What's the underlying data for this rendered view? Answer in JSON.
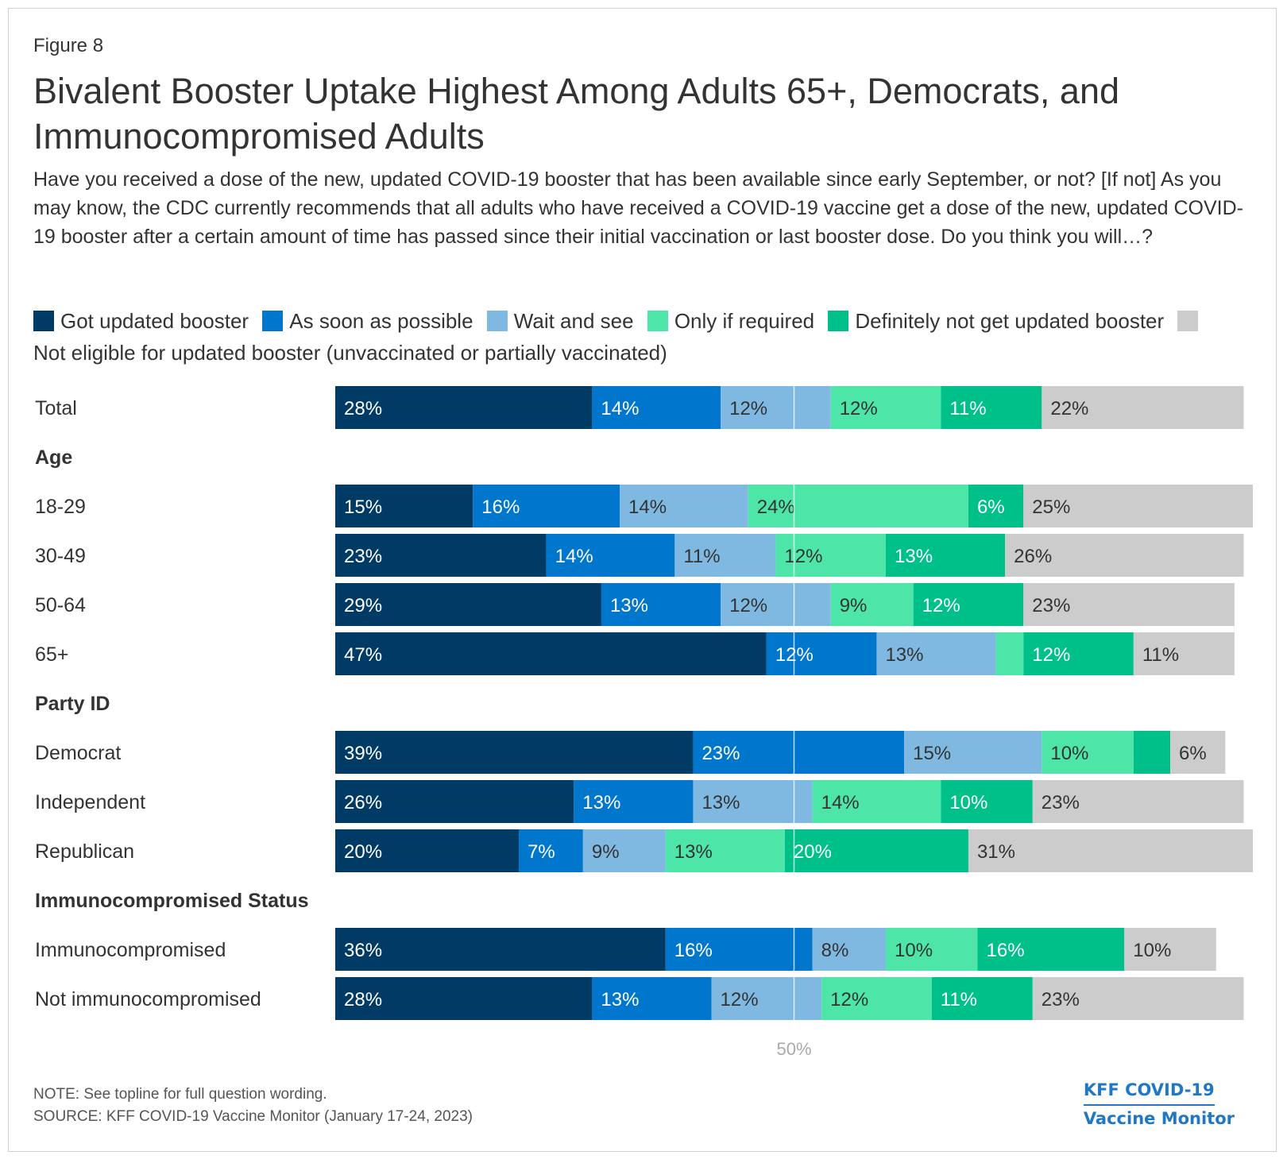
{
  "figure_label": "Figure 8",
  "title": "Bivalent Booster Uptake Highest Among Adults 65+, Democrats, and Immunocompromised Adults",
  "subtitle": "Have you received a dose of the new, updated COVID-19 booster that has been available since early September, or not? [If not] As you may know, the CDC currently recommends that all adults who have received a COVID-19 vaccine get a dose of the new, updated COVID-19 booster after a certain amount of time has passed since their initial vaccination or last booster dose. Do you think you will…?",
  "note": "NOTE: See topline for full question wording.",
  "source": "SOURCE: KFF COVID-19 Vaccine Monitor (January 17-24, 2023)",
  "logo": {
    "line1": "KFF COVID-19",
    "line2": "Vaccine Monitor"
  },
  "chart_data": {
    "type": "bar",
    "orientation": "horizontal",
    "stacked": true,
    "reference_line": {
      "value": 50,
      "label": "50%"
    },
    "xlim": [
      0,
      100
    ],
    "series": [
      {
        "name": "Got updated booster",
        "color": "#003b66"
      },
      {
        "name": "As soon as possible",
        "color": "#0077cc"
      },
      {
        "name": "Wait and see",
        "color": "#7fb9e2"
      },
      {
        "name": "Only if required",
        "color": "#4ee6a8"
      },
      {
        "name": "Definitely not get updated booster",
        "color": "#00c08a"
      },
      {
        "name": "Not eligible for updated booster (unvaccinated or partially vaccinated)",
        "color": "#cccccc"
      }
    ],
    "rows": [
      {
        "kind": "bar",
        "label": "Total",
        "values": [
          28,
          14,
          12,
          12,
          11,
          22
        ]
      },
      {
        "kind": "header",
        "label": "Age"
      },
      {
        "kind": "bar",
        "label": "18-29",
        "values": [
          15,
          16,
          14,
          24,
          6,
          25
        ]
      },
      {
        "kind": "bar",
        "label": "30-49",
        "values": [
          23,
          14,
          11,
          12,
          13,
          26
        ]
      },
      {
        "kind": "bar",
        "label": "50-64",
        "values": [
          29,
          13,
          12,
          9,
          12,
          23
        ]
      },
      {
        "kind": "bar",
        "label": "65+",
        "values": [
          47,
          12,
          13,
          3,
          12,
          11
        ],
        "labels": [
          "47%",
          "12%",
          "13%",
          "",
          "12%",
          "11%"
        ]
      },
      {
        "kind": "header",
        "label": "Party ID"
      },
      {
        "kind": "bar",
        "label": "Democrat",
        "values": [
          39,
          23,
          15,
          10,
          4,
          6
        ],
        "labels": [
          "39%",
          "23%",
          "15%",
          "10%",
          "",
          "6%"
        ]
      },
      {
        "kind": "bar",
        "label": "Independent",
        "values": [
          26,
          13,
          13,
          14,
          10,
          23
        ]
      },
      {
        "kind": "bar",
        "label": "Republican",
        "values": [
          20,
          7,
          9,
          13,
          20,
          31
        ]
      },
      {
        "kind": "header",
        "label": "Immunocompromised Status"
      },
      {
        "kind": "bar",
        "label": "Immunocompromised",
        "values": [
          36,
          16,
          8,
          10,
          16,
          10
        ]
      },
      {
        "kind": "bar",
        "label": "Not immunocompromised",
        "values": [
          28,
          13,
          12,
          12,
          11,
          23
        ]
      }
    ]
  }
}
